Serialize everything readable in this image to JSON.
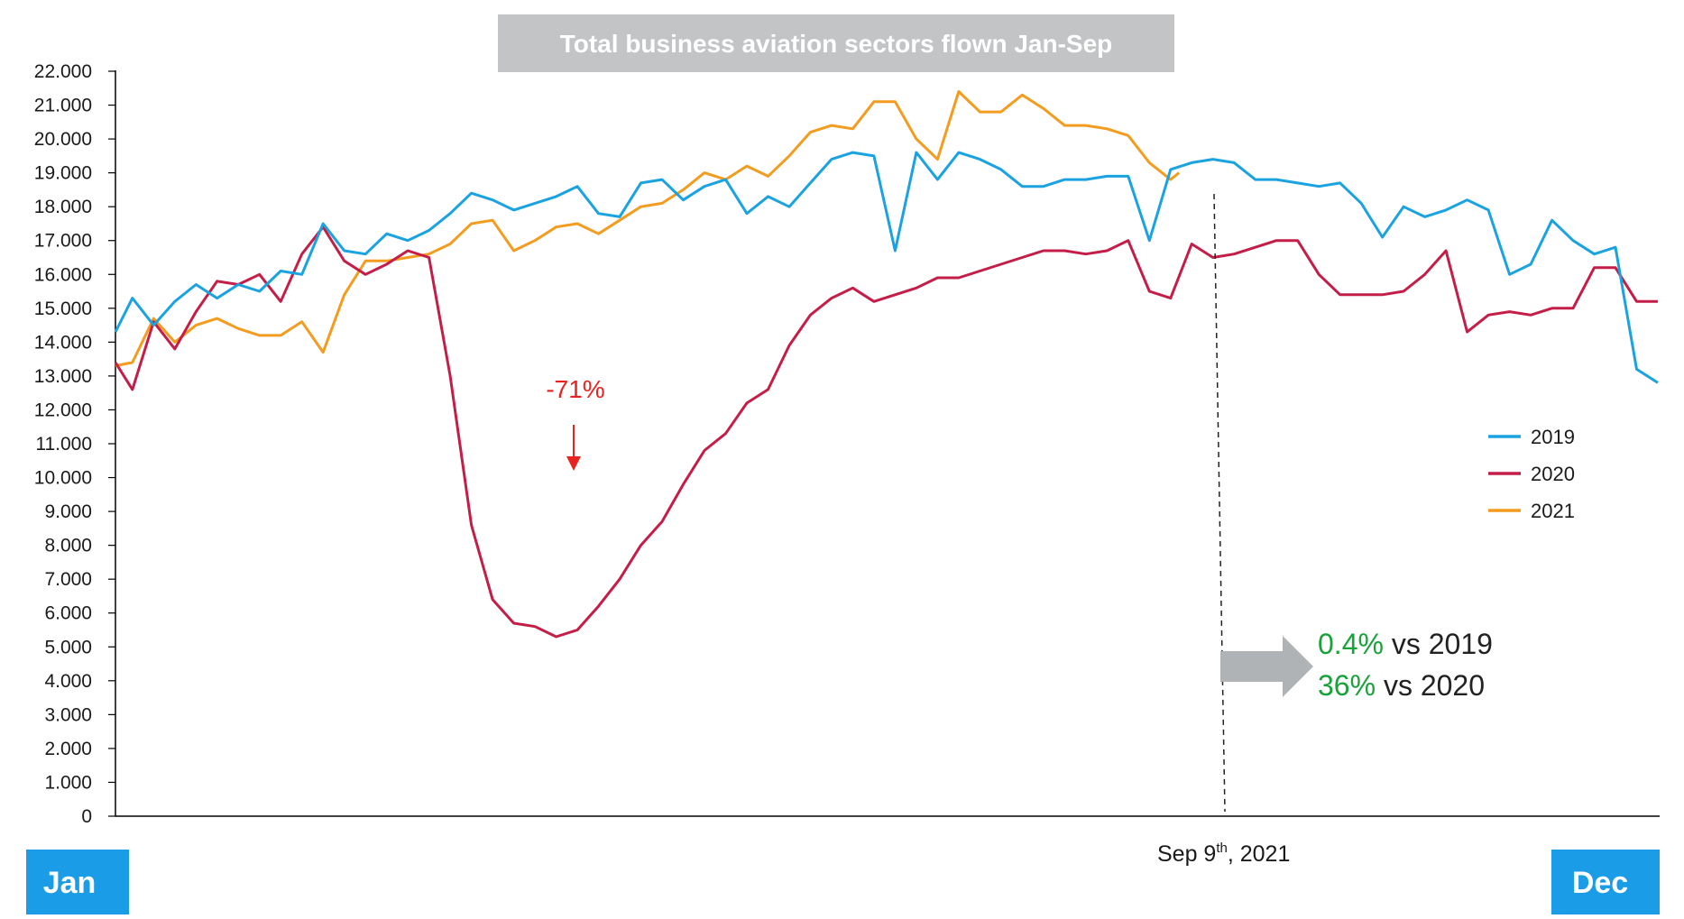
{
  "chart_data": {
    "type": "line",
    "title": "Total business aviation sectors flown Jan-Sep",
    "ylim": [
      0,
      22000
    ],
    "yticks": [
      0,
      1000,
      2000,
      3000,
      4000,
      5000,
      6000,
      7000,
      8000,
      9000,
      10000,
      11000,
      12000,
      13000,
      14000,
      15000,
      16000,
      17000,
      18000,
      19000,
      20000,
      21000,
      22000
    ],
    "ytick_labels": [
      "0",
      "1.000",
      "2.000",
      "3.000",
      "4.000",
      "5.000",
      "6.000",
      "7.000",
      "8.000",
      "9.000",
      "10.000",
      "11.000",
      "12.000",
      "13.000",
      "14.000",
      "15.000",
      "16.000",
      "17.000",
      "18.000",
      "19.000",
      "20.000",
      "21.000",
      "22.000"
    ],
    "x_label_start": "Jan",
    "x_label_end": "Dec",
    "xlim": [
      1,
      365
    ],
    "grid": false,
    "legend_position": "right",
    "series": [
      {
        "name": "2019",
        "color": "#1aa3e0",
        "x": [
          1,
          5,
          10,
          15,
          20,
          25,
          30,
          35,
          40,
          45,
          50,
          55,
          60,
          65,
          70,
          75,
          80,
          85,
          90,
          95,
          100,
          105,
          110,
          115,
          120,
          125,
          130,
          135,
          140,
          145,
          150,
          155,
          160,
          165,
          170,
          175,
          180,
          185,
          190,
          195,
          200,
          205,
          210,
          215,
          220,
          225,
          230,
          235,
          240,
          245,
          250,
          255,
          260,
          265,
          270,
          275,
          280,
          285,
          290,
          295,
          300,
          305,
          310,
          315,
          320,
          325,
          330,
          335,
          340,
          345,
          350,
          355,
          360,
          365
        ],
        "values": [
          14300,
          15300,
          14500,
          15200,
          15700,
          15300,
          15700,
          15500,
          16100,
          16000,
          17500,
          16700,
          16600,
          17200,
          17000,
          17300,
          17800,
          18400,
          18200,
          17900,
          18100,
          18300,
          18600,
          17800,
          17700,
          18700,
          18800,
          18200,
          18600,
          18800,
          17800,
          18300,
          18000,
          18700,
          19400,
          19600,
          19500,
          16700,
          19600,
          18800,
          19600,
          19400,
          19100,
          18600,
          18600,
          18800,
          18800,
          18900,
          18900,
          17000,
          19100,
          19300,
          19400,
          19300,
          18800,
          18800,
          18700,
          18600,
          18700,
          18100,
          17100,
          18000,
          17700,
          17900,
          18200,
          17900,
          16000,
          16300,
          17600,
          17000,
          16600,
          16800,
          13200,
          12800
        ]
      },
      {
        "name": "2020",
        "color": "#c41e48",
        "x": [
          1,
          5,
          10,
          15,
          20,
          25,
          30,
          35,
          40,
          45,
          50,
          55,
          60,
          65,
          70,
          75,
          80,
          85,
          90,
          95,
          100,
          105,
          110,
          115,
          120,
          125,
          130,
          135,
          140,
          145,
          150,
          155,
          160,
          165,
          170,
          175,
          180,
          185,
          190,
          195,
          200,
          205,
          210,
          215,
          220,
          225,
          230,
          235,
          240,
          245,
          250,
          255,
          260,
          265,
          270,
          275,
          280,
          285,
          290,
          295,
          300,
          305,
          310,
          315,
          320,
          325,
          330,
          335,
          340,
          345,
          350,
          355,
          360,
          365
        ],
        "values": [
          13400,
          12600,
          14600,
          13800,
          14900,
          15800,
          15700,
          16000,
          15200,
          16600,
          17400,
          16400,
          16000,
          16300,
          16700,
          16500,
          13000,
          8600,
          6400,
          5700,
          5600,
          5300,
          5500,
          6200,
          7000,
          8000,
          8700,
          9800,
          10800,
          11300,
          12200,
          12600,
          13900,
          14800,
          15300,
          15600,
          15200,
          15400,
          15600,
          15900,
          15900,
          16100,
          16300,
          16500,
          16700,
          16700,
          16600,
          16700,
          17000,
          15500,
          15300,
          16900,
          16500,
          16600,
          16800,
          17000,
          17000,
          16000,
          15400,
          15400,
          15400,
          15500,
          16000,
          16700,
          14300,
          14800,
          14900,
          14800,
          15000,
          15000,
          16200,
          16200,
          15200,
          15200
        ]
      },
      {
        "name": "2021",
        "color": "#f39c1f",
        "x": [
          1,
          5,
          10,
          15,
          20,
          25,
          30,
          35,
          40,
          45,
          50,
          55,
          60,
          65,
          70,
          75,
          80,
          85,
          90,
          95,
          100,
          105,
          110,
          115,
          120,
          125,
          130,
          135,
          140,
          145,
          150,
          155,
          160,
          165,
          170,
          175,
          180,
          185,
          190,
          195,
          200,
          205,
          210,
          215,
          220,
          225,
          230,
          235,
          240,
          245,
          250,
          252
        ],
        "values": [
          13300,
          13400,
          14700,
          14000,
          14500,
          14700,
          14400,
          14200,
          14200,
          14600,
          13700,
          15400,
          16400,
          16400,
          16500,
          16600,
          16900,
          17500,
          17600,
          16700,
          17000,
          17400,
          17500,
          17200,
          17600,
          18000,
          18100,
          18500,
          19000,
          18800,
          19200,
          18900,
          19500,
          20200,
          20400,
          20300,
          21100,
          21100,
          20000,
          19400,
          21400,
          20800,
          20800,
          21300,
          20900,
          20400,
          20400,
          20300,
          20100,
          19300,
          18800,
          19000
        ]
      }
    ],
    "annotations": {
      "drop_label": "-71%",
      "date_label_main": "Sep 9",
      "date_label_sup": "th",
      "date_label_tail": ", 2021",
      "comparison": [
        {
          "value": "0.4%",
          "text": " vs 2019"
        },
        {
          "value": "36%",
          "text": " vs 2020"
        }
      ],
      "dashed_line_day": 252
    }
  },
  "colors": {
    "title_bg": "#c2c4c6",
    "month_box": "#1a9ce6",
    "arrow": "#b0b3b6",
    "highlight_green": "#19a13a",
    "drop_red": "#e8221f"
  }
}
